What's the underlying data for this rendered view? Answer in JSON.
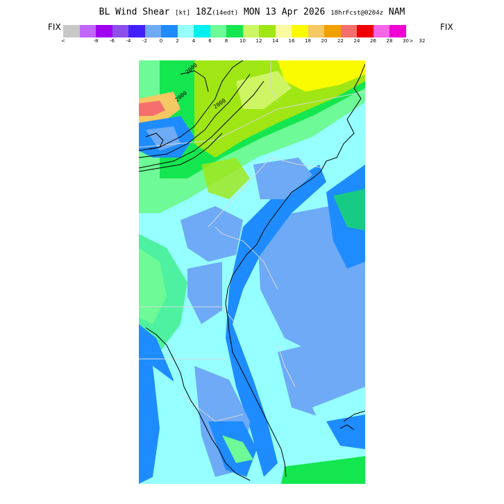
{
  "header": {
    "title_main": "BL Wind Shear",
    "title_units": "[kt]",
    "title_time": "18Z",
    "title_local": "(14edt)",
    "title_date": "MON 13 Apr 2026",
    "title_fcst": "18hrFcst@0204z",
    "title_model": "NAM"
  },
  "colorbar": {
    "left_label": "FIX",
    "right_label": "FIX",
    "left_arrow": "<",
    "right_arrow": ">",
    "colors": [
      "#c8c8c8",
      "#c066ff",
      "#a000f0",
      "#8c50e8",
      "#4020ff",
      "#6eaaf6",
      "#1e8cff",
      "#96ffff",
      "#00f0f0",
      "#6efa96",
      "#14e650",
      "#cdf564",
      "#a0e614",
      "#fafaa0",
      "#fafa00",
      "#f5c864",
      "#f0a000",
      "#f56e6e",
      "#f00000",
      "#f564e6",
      "#f000d2"
    ],
    "ticks": [
      "-8",
      "-6",
      "-4",
      "-2",
      "0",
      "2",
      "4",
      "6",
      "8",
      "10",
      "12",
      "14",
      "16",
      "18",
      "20",
      "22",
      "24",
      "26",
      "28",
      "30",
      "32"
    ]
  },
  "map": {
    "contour_labels": [
      "2000",
      "2000",
      "2000"
    ]
  }
}
